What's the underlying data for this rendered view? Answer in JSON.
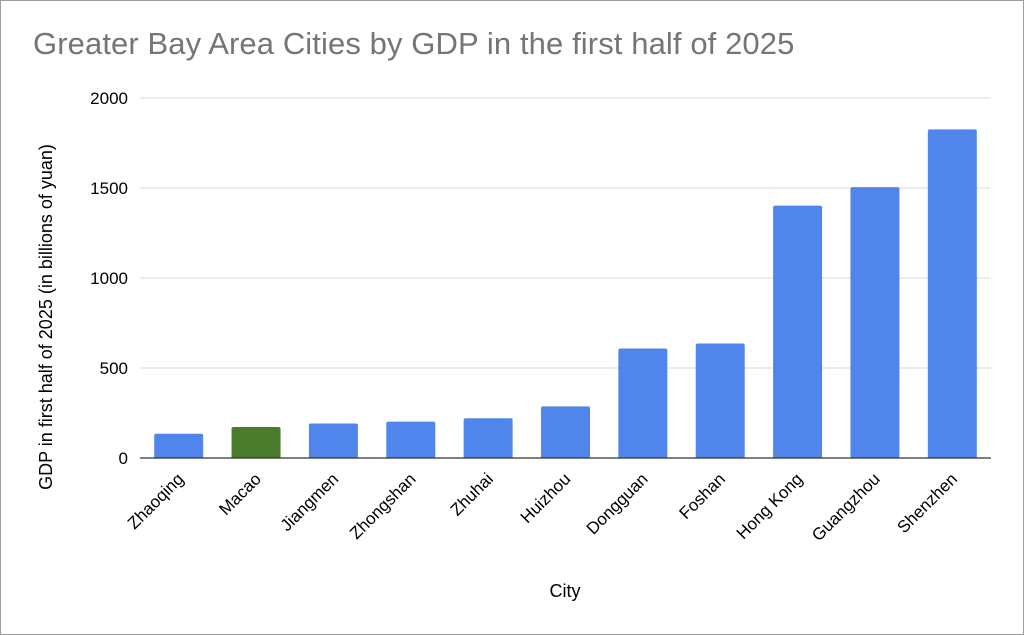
{
  "chart_data": {
    "type": "bar",
    "title": "Greater Bay Area Cities by GDP in the first half of 2025",
    "xlabel": "City",
    "ylabel": "GDP in first half of 2025 (in billions of yuan)",
    "ylim": [
      0,
      2000
    ],
    "yticks": [
      0,
      500,
      1000,
      1500,
      2000
    ],
    "grid": true,
    "legend": "none",
    "categories": [
      "Zhaoqing",
      "Macao",
      "Jiangmen",
      "Zhongshan",
      "Zhuhai",
      "Huizhou",
      "Dongguan",
      "Foshan",
      "Hong Kong",
      "Guangzhou",
      "Shenzhen"
    ],
    "values": [
      135,
      172,
      192,
      202,
      221,
      287,
      608,
      636,
      1402,
      1505,
      1826
    ],
    "colors": {
      "default_bar": "#5086ec",
      "highlight_bar": "#4a7a2c",
      "highlight_category": "Macao",
      "grid": "#d9d9d9",
      "axis": "#333333",
      "title": "#757575",
      "text": "#000000"
    }
  }
}
